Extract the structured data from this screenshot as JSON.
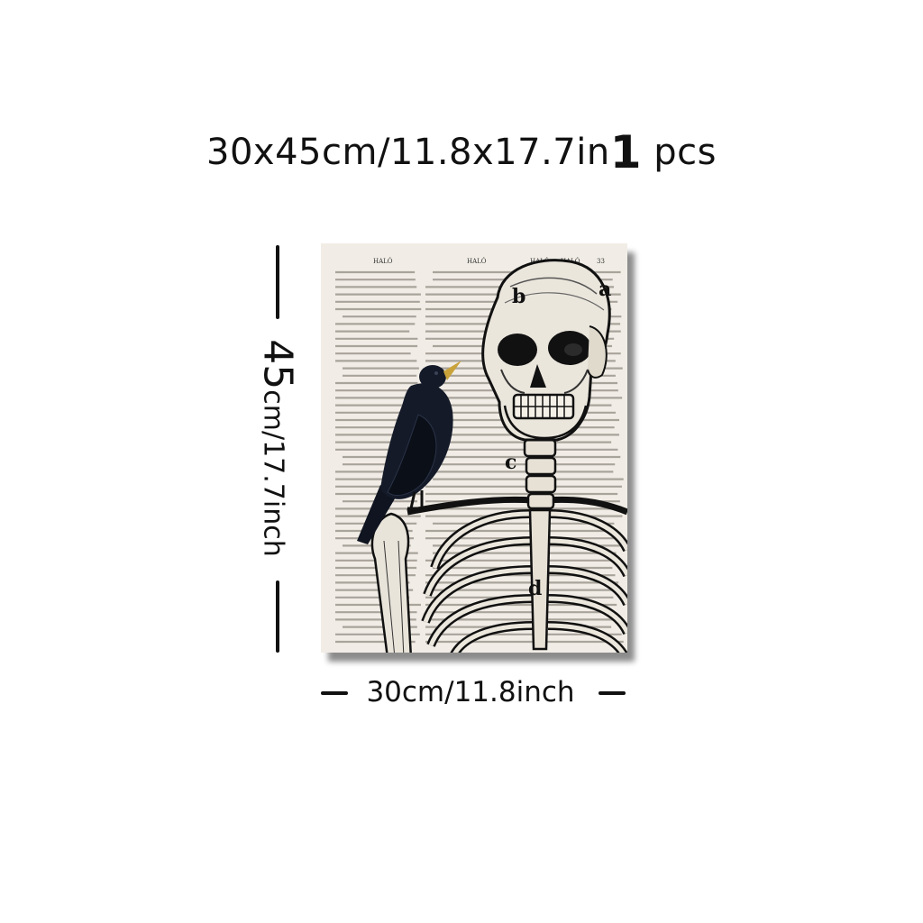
{
  "header": {
    "size_text": "30x45cm/11.8x17.7in",
    "quantity_number": "1",
    "quantity_unit": "pcs"
  },
  "dimensions": {
    "height_number": "45",
    "height_unit": "cm/17.7inch",
    "width_label": "30cm/11.8inch"
  },
  "artwork": {
    "page_headers": [
      "HALÓ",
      "HALÓ",
      "HALÓ",
      "HALÓ",
      "33"
    ],
    "figure_letters": [
      "a",
      "b",
      "c",
      "d"
    ],
    "subject_icons": [
      "skeleton-icon",
      "crow-icon"
    ],
    "background_color": "#f1ede6",
    "beak_color": "#c9a23a"
  }
}
